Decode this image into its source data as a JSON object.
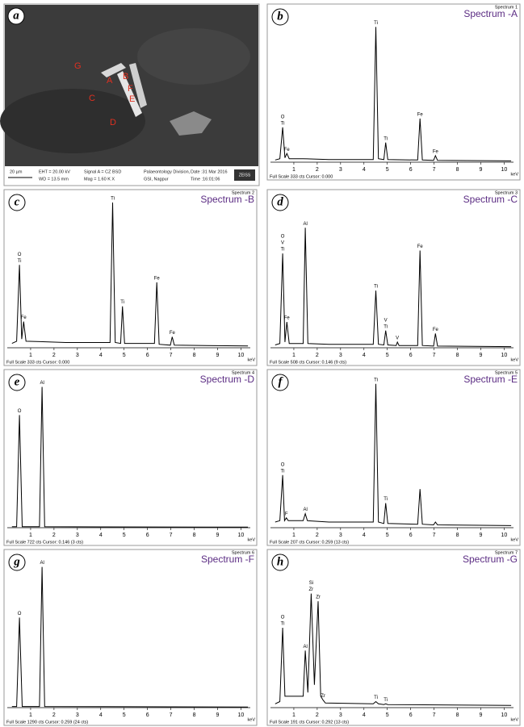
{
  "figure": {
    "image": {
      "panel": "a",
      "labels": [
        "G",
        "A",
        "B",
        "F",
        "E",
        "C",
        "D"
      ],
      "info": [
        "20 µm",
        "EHT = 20.00 kV",
        "WD = 13.5 mm",
        "Signal A = CZ BSD",
        "Mag = 1.60 K X",
        "Palaeontology Division,",
        "GSI, Nagpur",
        "Date :31 Mar 2016",
        "Time :16:01:06",
        "ZEISS"
      ]
    }
  },
  "chart_data": [
    {
      "type": "line",
      "panel": "b",
      "title": "Spectrum -A",
      "spectrum": "Spectrum 1",
      "footer": "Full Scale 333 cts Cursor: 0.000",
      "x_unit": "keV",
      "title_color": "#5b2c83",
      "color": "#000000",
      "xlim": [
        0,
        10.4
      ],
      "ylim": [
        0,
        333
      ],
      "xticks": [
        1,
        2,
        3,
        4,
        5,
        6,
        7,
        8,
        9,
        10
      ],
      "x": [
        0.2,
        0.4,
        0.52,
        0.62,
        0.7,
        0.8,
        1.4,
        2.5,
        4.4,
        4.51,
        4.62,
        4.85,
        4.93,
        5.02,
        6.3,
        6.4,
        6.5,
        6.98,
        7.06,
        7.15,
        10.3
      ],
      "values": [
        5,
        8,
        80,
        10,
        20,
        8,
        8,
        6,
        6,
        310,
        8,
        6,
        45,
        6,
        5,
        100,
        5,
        4,
        15,
        4,
        3
      ],
      "peak_labels": [
        {
          "text": "O",
          "x": 0.52
        },
        {
          "text": "Ti",
          "x": 0.52
        },
        {
          "text": "Fe",
          "x": 0.7
        },
        {
          "text": "Ti",
          "x": 4.51
        },
        {
          "text": "Ti",
          "x": 4.93
        },
        {
          "text": "Fe",
          "x": 6.4
        },
        {
          "text": "Fe",
          "x": 7.06
        }
      ]
    },
    {
      "type": "line",
      "panel": "c",
      "title": "Spectrum -B",
      "spectrum": "Spectrum 2",
      "footer": "Full Scale 333 cts Cursor: 0.000",
      "x_unit": "keV",
      "title_color": "#5b2c83",
      "color": "#000000",
      "xlim": [
        0,
        10.4
      ],
      "ylim": [
        0,
        333
      ],
      "xticks": [
        1,
        2,
        3,
        4,
        5,
        6,
        7,
        8,
        9,
        10
      ],
      "x": [
        0.2,
        0.4,
        0.52,
        0.62,
        0.7,
        0.8,
        1.4,
        2.5,
        4.4,
        4.51,
        4.62,
        4.85,
        4.93,
        5.02,
        6.3,
        6.4,
        6.5,
        6.98,
        7.06,
        7.15,
        10.3
      ],
      "values": [
        10,
        15,
        190,
        20,
        60,
        15,
        14,
        12,
        12,
        333,
        12,
        10,
        95,
        10,
        10,
        150,
        8,
        6,
        25,
        6,
        4
      ],
      "peak_labels": [
        {
          "text": "O",
          "x": 0.52
        },
        {
          "text": "Ti",
          "x": 0.52
        },
        {
          "text": "Fe",
          "x": 0.7
        },
        {
          "text": "Ti",
          "x": 4.51
        },
        {
          "text": "Ti",
          "x": 4.93
        },
        {
          "text": "Fe",
          "x": 6.4
        },
        {
          "text": "Fe",
          "x": 7.06
        }
      ]
    },
    {
      "type": "line",
      "panel": "d",
      "title": "Spectrum -C",
      "spectrum": "Spectrum 3",
      "footer": "Full Scale 508 cts Cursor: 0.146 (9 cts)",
      "x_unit": "keV",
      "title_color": "#5b2c83",
      "color": "#000000",
      "xlim": [
        0,
        10.4
      ],
      "ylim": [
        0,
        508
      ],
      "xticks": [
        1,
        2,
        3,
        4,
        5,
        6,
        7,
        8,
        9,
        10
      ],
      "x": [
        0.2,
        0.4,
        0.52,
        0.62,
        0.7,
        0.8,
        1.4,
        1.49,
        1.6,
        2.5,
        4.4,
        4.51,
        4.62,
        4.85,
        4.93,
        5.02,
        5.38,
        5.43,
        5.5,
        6.3,
        6.4,
        6.5,
        6.98,
        7.06,
        7.15,
        10.3
      ],
      "values": [
        10,
        15,
        330,
        20,
        90,
        15,
        15,
        420,
        15,
        12,
        12,
        200,
        12,
        10,
        60,
        10,
        8,
        20,
        8,
        8,
        340,
        8,
        6,
        50,
        6,
        4
      ],
      "peak_labels": [
        {
          "text": "O",
          "x": 0.52
        },
        {
          "text": "V",
          "x": 0.52
        },
        {
          "text": "Ti",
          "x": 0.52
        },
        {
          "text": "Fe",
          "x": 0.7
        },
        {
          "text": "Al",
          "x": 1.49
        },
        {
          "text": "Ti",
          "x": 4.51
        },
        {
          "text": "V",
          "x": 4.93
        },
        {
          "text": "Ti",
          "x": 4.93
        },
        {
          "text": "V",
          "x": 5.43
        },
        {
          "text": "Fe",
          "x": 6.4
        },
        {
          "text": "Fe",
          "x": 7.06
        }
      ]
    },
    {
      "type": "line",
      "panel": "e",
      "title": "Spectrum -D",
      "spectrum": "Spectrum 4",
      "footer": "Full Scale 722 cts Cursor: 0.146 (3 cts)",
      "x_unit": "keV",
      "title_color": "#5b2c83",
      "color": "#000000",
      "xlim": [
        0,
        10.4
      ],
      "ylim": [
        0,
        722
      ],
      "xticks": [
        1,
        2,
        3,
        4,
        5,
        6,
        7,
        8,
        9,
        10
      ],
      "x": [
        0.2,
        0.4,
        0.52,
        0.64,
        1.38,
        1.49,
        1.6,
        10.3
      ],
      "values": [
        5,
        5,
        560,
        5,
        5,
        700,
        5,
        3
      ],
      "peak_labels": [
        {
          "text": "O",
          "x": 0.52
        },
        {
          "text": "Al",
          "x": 1.49
        }
      ]
    },
    {
      "type": "line",
      "panel": "f",
      "title": "Spectrum -E",
      "spectrum": "Spectrum 5",
      "footer": "Full Scale 207 cts Cursor: 0.259 (13 cts)",
      "x_unit": "keV",
      "title_color": "#5b2c83",
      "color": "#000000",
      "xlim": [
        0,
        10.4
      ],
      "ylim": [
        0,
        207
      ],
      "xticks": [
        1,
        2,
        3,
        4,
        5,
        6,
        7,
        8,
        9,
        10
      ],
      "x": [
        0.2,
        0.4,
        0.52,
        0.6,
        0.68,
        0.76,
        1.4,
        1.49,
        1.58,
        2.5,
        4.4,
        4.51,
        4.62,
        4.85,
        4.93,
        5.02,
        6.3,
        6.4,
        6.5,
        6.98,
        7.06,
        7.15,
        10.3
      ],
      "values": [
        8,
        10,
        75,
        10,
        14,
        10,
        10,
        20,
        10,
        8,
        8,
        205,
        8,
        6,
        35,
        6,
        5,
        55,
        5,
        4,
        8,
        4,
        3
      ],
      "peak_labels": [
        {
          "text": "O",
          "x": 0.52
        },
        {
          "text": "Ti",
          "x": 0.52
        },
        {
          "text": "F",
          "x": 0.68
        },
        {
          "text": "Al",
          "x": 1.49
        },
        {
          "text": "Ti",
          "x": 4.51
        },
        {
          "text": "Ti",
          "x": 4.93
        }
      ]
    },
    {
      "type": "line",
      "panel": "g",
      "title": "Spectrum -F",
      "spectrum": "Spectrum 6",
      "footer": "Full Scale 1290 cts Cursor: 0.259 (24 cts)",
      "x_unit": "keV",
      "title_color": "#5b2c83",
      "color": "#000000",
      "xlim": [
        0,
        10.4
      ],
      "ylim": [
        0,
        1290
      ],
      "xticks": [
        1,
        2,
        3,
        4,
        5,
        6,
        7,
        8,
        9,
        10
      ],
      "x": [
        0.2,
        0.4,
        0.52,
        0.64,
        1.38,
        1.49,
        1.6,
        10.3
      ],
      "values": [
        10,
        10,
        800,
        10,
        10,
        1250,
        10,
        5
      ],
      "peak_labels": [
        {
          "text": "O",
          "x": 0.52
        },
        {
          "text": "Al",
          "x": 1.49
        }
      ]
    },
    {
      "type": "line",
      "panel": "h",
      "title": "Spectrum -G",
      "spectrum": "Spectrum 7",
      "footer": "Full Scale 191 cts Cursor: 0.292 (13 cts)",
      "x_unit": "keV",
      "title_color": "#5b2c83",
      "color": "#000000",
      "xlim": [
        0,
        10.4
      ],
      "ylim": [
        0,
        191
      ],
      "xticks": [
        1,
        2,
        3,
        4,
        5,
        6,
        7,
        8,
        9,
        10
      ],
      "x": [
        0.2,
        0.4,
        0.52,
        0.62,
        1.4,
        1.49,
        1.6,
        1.74,
        1.88,
        2.04,
        2.15,
        2.25,
        2.35,
        4.4,
        4.51,
        4.62,
        4.85,
        4.93,
        5.02,
        10.3
      ],
      "values": [
        5,
        8,
        105,
        15,
        15,
        75,
        20,
        150,
        30,
        140,
        15,
        10,
        6,
        5,
        8,
        5,
        4,
        5,
        4,
        3
      ],
      "peak_labels": [
        {
          "text": "O",
          "x": 0.52
        },
        {
          "text": "Ti",
          "x": 0.52
        },
        {
          "text": "Al",
          "x": 1.49
        },
        {
          "text": "Si",
          "x": 1.74
        },
        {
          "text": "Zr",
          "x": 1.74
        },
        {
          "text": "Zr",
          "x": 2.04
        },
        {
          "text": "Zr",
          "x": 2.25
        },
        {
          "text": "Ti",
          "x": 4.51
        },
        {
          "text": "Ti",
          "x": 4.93
        }
      ]
    }
  ]
}
